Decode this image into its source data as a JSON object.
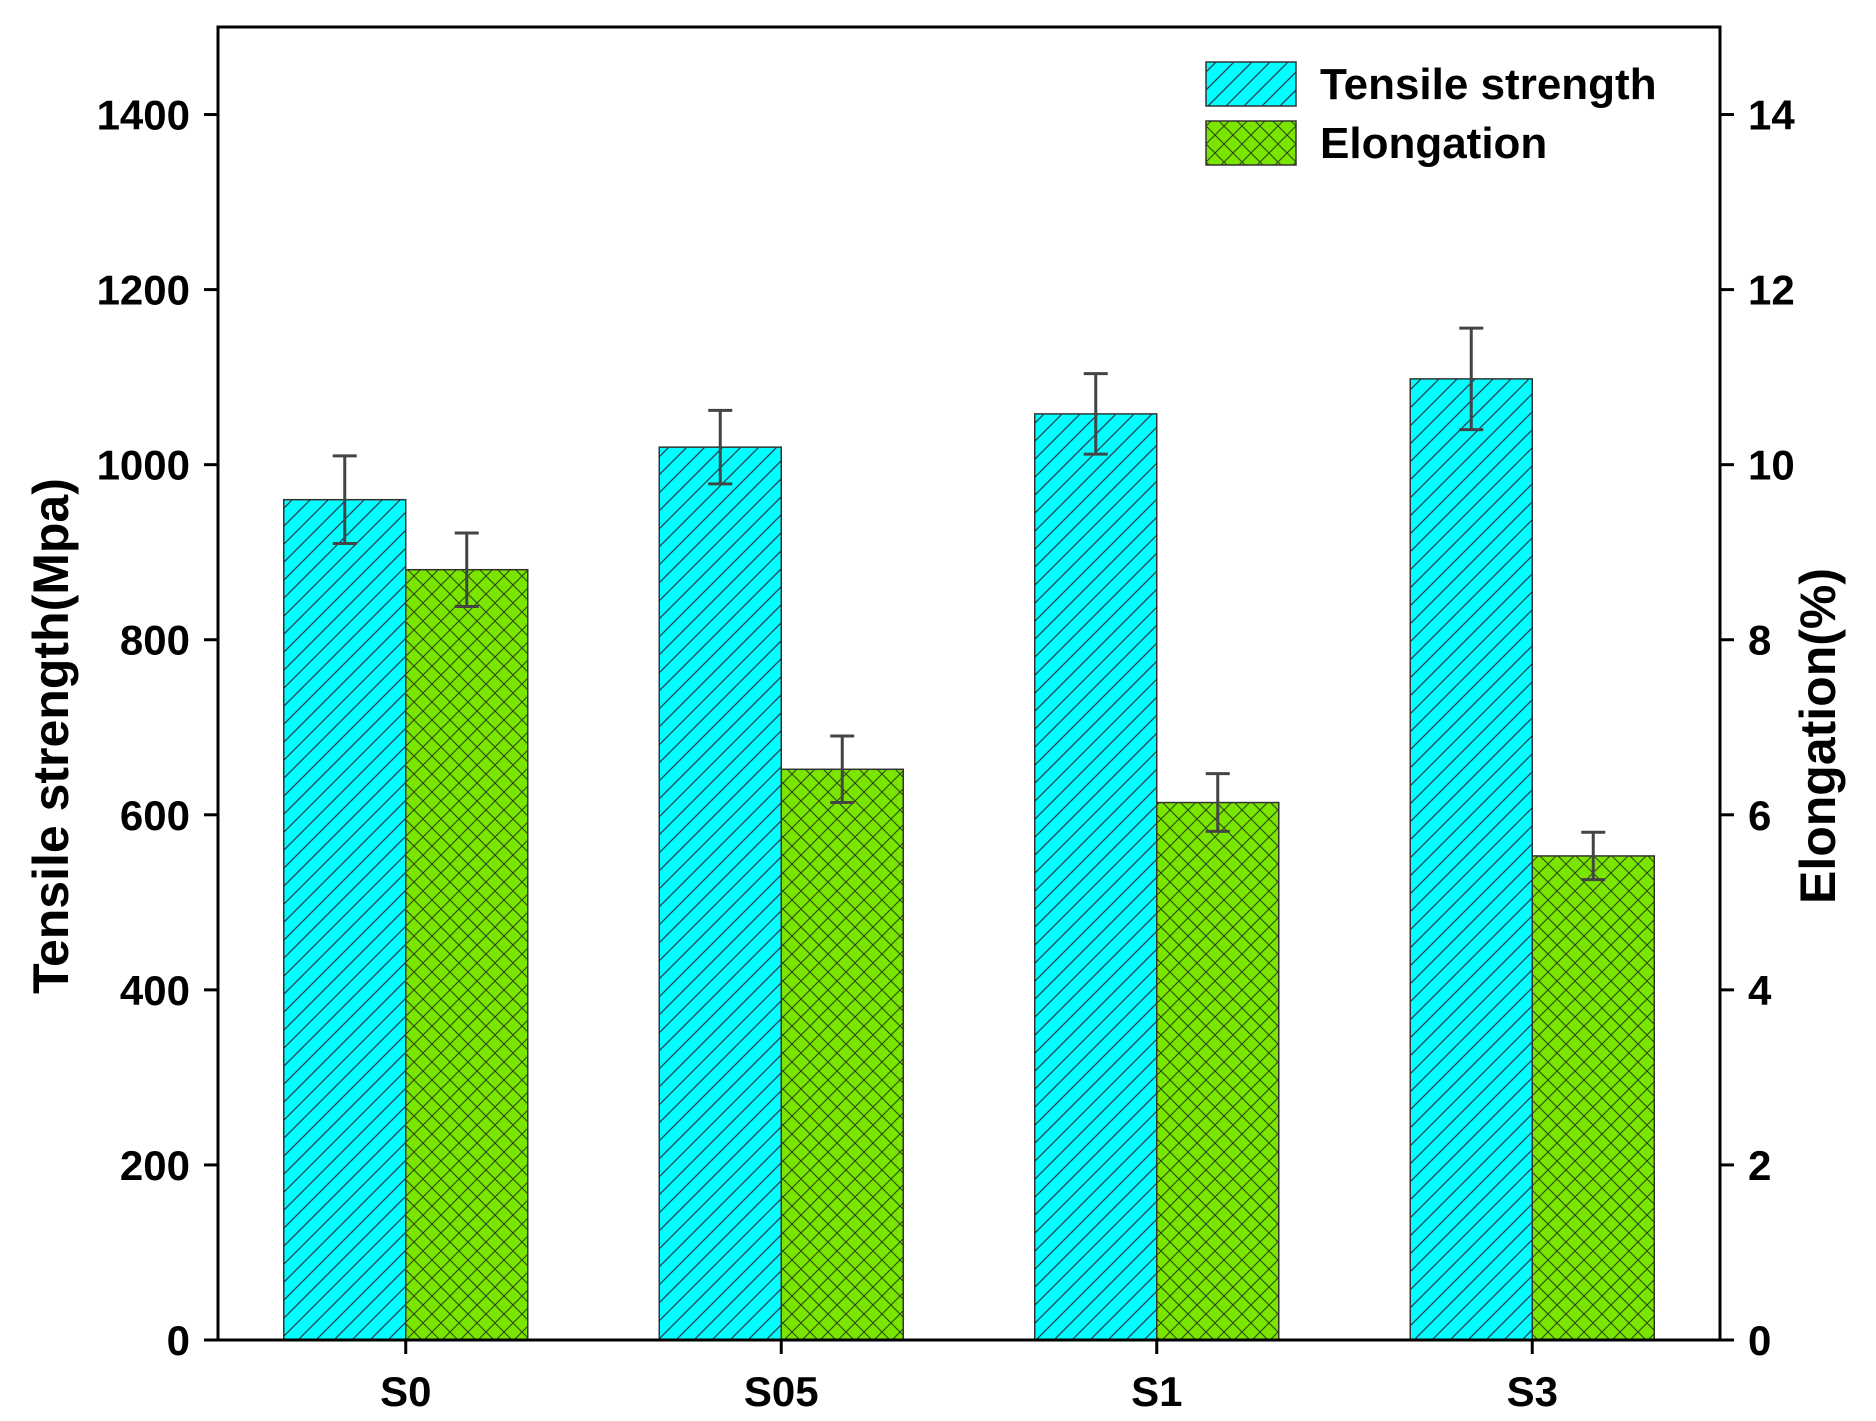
{
  "chart_data": {
    "type": "bar",
    "categories": [
      "S0",
      "S05",
      "S1",
      "S3"
    ],
    "series": [
      {
        "name": "Tensile strength",
        "axis": "left",
        "values": [
          960,
          1020,
          1058,
          1098
        ],
        "errors": [
          50,
          42,
          46,
          58
        ],
        "color": "#00FFFF",
        "pattern": "diagonal-hatch"
      },
      {
        "name": "Elongation",
        "axis": "right",
        "values": [
          8.8,
          6.52,
          6.14,
          5.53
        ],
        "errors": [
          0.42,
          0.38,
          0.33,
          0.27
        ],
        "color": "#7AE600",
        "pattern": "cross-hatch"
      }
    ],
    "ylabel": "Tensile strength(Mpa)",
    "ylabel_right": "Elongation(%)",
    "ylim": [
      0,
      1500
    ],
    "ylim_right": [
      0,
      15
    ],
    "yticks": [
      0,
      200,
      400,
      600,
      800,
      1000,
      1200,
      1400
    ],
    "yticks_right": [
      0,
      2,
      4,
      6,
      8,
      10,
      12,
      14
    ],
    "legend_position": "top-right",
    "grid": false
  }
}
